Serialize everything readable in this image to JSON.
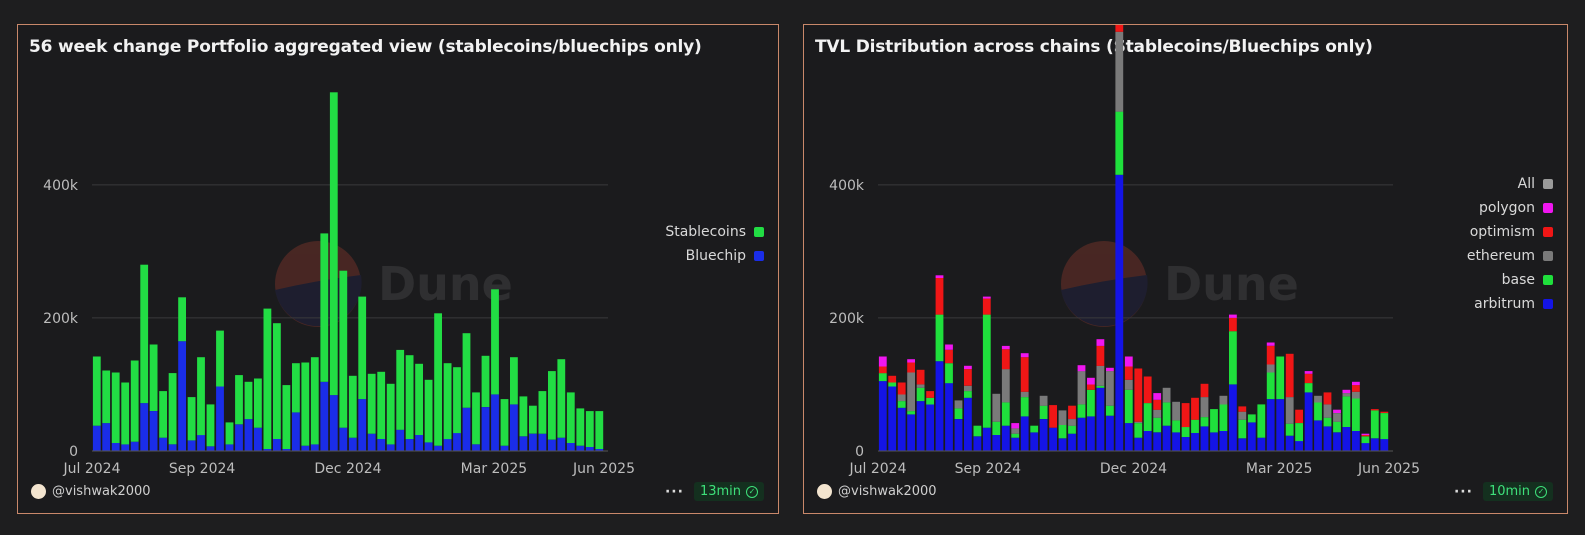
{
  "panels": {
    "left": {
      "title": "56 week change Portfolio aggregated view (stablecoins/bluechips only)",
      "author": "@vishwak2000",
      "refresh": "13min"
    },
    "right": {
      "title": "TVL Distribution across chains (Stablecoins/Bluechips only)",
      "author": "@vishwak2000",
      "refresh": "10min"
    }
  },
  "watermark": "Dune",
  "colors": {
    "stablecoins": "#22dd44",
    "bluechip": "#1a2de8",
    "arbitrum": "#1414e6",
    "base": "#1fe03c",
    "ethereum": "#7a7a7a",
    "optimism": "#f01616",
    "polygon": "#f016f0",
    "all": "#9a9a9a"
  },
  "chart_data": [
    {
      "type": "bar",
      "stacked": true,
      "title": "56 week change Portfolio aggregated view (stablecoins/bluechips only)",
      "x_ticks": [
        "Jul 2024",
        "Sep 2024",
        "Dec 2024",
        "Mar 2025",
        "Jun 2025"
      ],
      "y_ticks": [
        "0",
        "200k",
        "400k"
      ],
      "ylim": [
        0,
        550000
      ],
      "legend": [
        "Stablecoins",
        "Bluechip"
      ],
      "legend_position": "right",
      "series": [
        {
          "name": "Bluechip",
          "values": [
            38000,
            42000,
            12000,
            10000,
            14000,
            72000,
            60000,
            20000,
            10000,
            165000,
            16000,
            24000,
            7000,
            97000,
            10000,
            40000,
            48000,
            35000,
            3000,
            18000,
            3000,
            58000,
            8000,
            10000,
            104000,
            84000,
            35000,
            20000,
            78000,
            26000,
            18000,
            10000,
            32000,
            18000,
            24000,
            13000,
            8000,
            18000,
            27000,
            65000,
            10000,
            66000,
            85000,
            8000,
            70000,
            22000,
            26000,
            26000,
            17000,
            20000,
            12000,
            8000,
            6000,
            3000
          ]
        },
        {
          "name": "Stablecoins",
          "values": [
            104000,
            79000,
            106000,
            93000,
            122000,
            208000,
            100000,
            70000,
            107000,
            66000,
            65000,
            117000,
            63000,
            84000,
            33000,
            74000,
            56000,
            74000,
            211000,
            174000,
            96000,
            74000,
            125000,
            131000,
            223000,
            455000,
            236000,
            93000,
            154000,
            90000,
            101000,
            91000,
            120000,
            126000,
            107000,
            94000,
            199000,
            114000,
            99000,
            112000,
            78000,
            77000,
            158000,
            70000,
            71000,
            60000,
            42000,
            64000,
            103000,
            118000,
            76000,
            56000,
            54000,
            57000
          ]
        }
      ]
    },
    {
      "type": "bar",
      "stacked": true,
      "title": "TVL Distribution across chains (Stablecoins/Bluechips only)",
      "x_ticks": [
        "Jul 2024",
        "Sep 2024",
        "Dec 2024",
        "Mar 2025",
        "Jun 2025"
      ],
      "y_ticks": [
        "0",
        "200k",
        "400k"
      ],
      "ylim": [
        0,
        550000
      ],
      "legend": [
        "All",
        "polygon",
        "optimism",
        "ethereum",
        "base",
        "arbitrum"
      ],
      "legend_position": "right",
      "series": [
        {
          "name": "arbitrum",
          "values": [
            105000,
            97000,
            65000,
            55000,
            75000,
            70000,
            135000,
            102000,
            48000,
            80000,
            22000,
            35000,
            24000,
            38000,
            20000,
            52000,
            28000,
            48000,
            35000,
            19000,
            26000,
            50000,
            52000,
            95000,
            53000,
            415000,
            42000,
            20000,
            30000,
            28000,
            38000,
            28000,
            21000,
            27000,
            37000,
            28000,
            30000,
            100000,
            19000,
            43000,
            20000,
            78000,
            78000,
            23000,
            15000,
            88000,
            46000,
            37000,
            28000,
            36000,
            30000,
            12000,
            19000,
            18000
          ]
        },
        {
          "name": "base",
          "values": [
            12000,
            6000,
            10000,
            5000,
            20000,
            10000,
            70000,
            30000,
            16000,
            10000,
            16000,
            170000,
            20000,
            35000,
            6000,
            29000,
            10000,
            20000,
            0,
            20000,
            12000,
            20000,
            40000,
            3000,
            15000,
            95000,
            50000,
            22000,
            42000,
            22000,
            35000,
            18000,
            15000,
            20000,
            14000,
            35000,
            40000,
            80000,
            28000,
            12000,
            50000,
            40000,
            64000,
            18000,
            27000,
            14000,
            27000,
            13000,
            16000,
            46000,
            49000,
            10000,
            42000,
            39000
          ]
        },
        {
          "name": "ethereum",
          "values": [
            0,
            0,
            10000,
            58000,
            5000,
            0,
            0,
            0,
            12000,
            8000,
            0,
            0,
            42000,
            50000,
            8000,
            8000,
            0,
            15000,
            0,
            22000,
            10000,
            50000,
            0,
            30000,
            52000,
            120000,
            15000,
            2000,
            0,
            12000,
            22000,
            28000,
            0,
            0,
            30000,
            0,
            13000,
            0,
            12000,
            0,
            0,
            12000,
            0,
            40000,
            0,
            0,
            10000,
            20000,
            13000,
            5000,
            10000,
            0,
            0,
            0
          ]
        },
        {
          "name": "optimism",
          "values": [
            10000,
            10000,
            18000,
            15000,
            22000,
            10000,
            55000,
            20000,
            0,
            25000,
            0,
            24000,
            0,
            30000,
            0,
            52000,
            0,
            0,
            34000,
            0,
            20000,
            0,
            8000,
            30000,
            0,
            20000,
            20000,
            80000,
            40000,
            15000,
            0,
            0,
            36000,
            33000,
            20000,
            0,
            0,
            20000,
            8000,
            0,
            0,
            28000,
            0,
            65000,
            20000,
            14000,
            0,
            18000,
            0,
            0,
            10000,
            2000,
            2000,
            2000
          ]
        },
        {
          "name": "polygon",
          "values": [
            15000,
            0,
            0,
            5000,
            0,
            0,
            4000,
            8000,
            0,
            5000,
            0,
            3000,
            0,
            5000,
            8000,
            6000,
            0,
            0,
            0,
            0,
            0,
            9000,
            10000,
            10000,
            5000,
            0,
            15000,
            0,
            0,
            10000,
            0,
            0,
            0,
            0,
            0,
            0,
            0,
            5000,
            0,
            0,
            0,
            5000,
            0,
            0,
            0,
            4000,
            0,
            0,
            5000,
            5000,
            5000,
            2000,
            0,
            0
          ]
        }
      ]
    }
  ]
}
